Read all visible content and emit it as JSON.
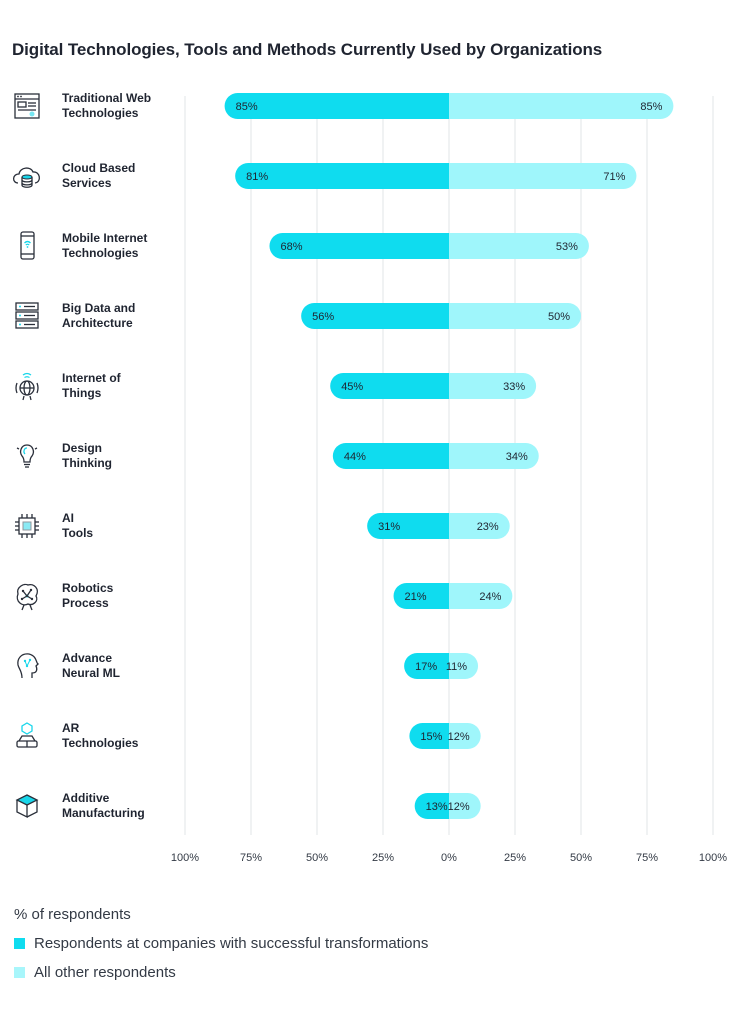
{
  "title": "Digital Technologies, Tools and Methods Currently Used by Organizations",
  "colors": {
    "series1": "#0fdcef",
    "series2": "#9ff6fb",
    "grid": "#e2e4e7",
    "text": "#1f2430"
  },
  "icons": [
    "browser-window-icon",
    "cloud-database-icon",
    "smartphone-wifi-icon",
    "server-stack-icon",
    "globe-signal-icon",
    "lightbulb-icon",
    "ai-chip-icon",
    "robot-brain-icon",
    "neural-head-icon",
    "ar-headset-icon",
    "3d-cube-icon"
  ],
  "legend": {
    "title": "% of respondents",
    "items": [
      "Respondents at companies with successful transformations",
      "All other respondents"
    ]
  },
  "chart_data": {
    "type": "bar",
    "orientation": "horizontal-diverging",
    "categories": [
      [
        "Traditional Web",
        "Technologies"
      ],
      [
        "Cloud Based",
        "Services"
      ],
      [
        "Mobile Internet",
        "Technologies"
      ],
      [
        "Big Data and",
        "Architecture"
      ],
      [
        "Internet of",
        "Things"
      ],
      [
        "Design",
        "Thinking"
      ],
      [
        "AI",
        "Tools"
      ],
      [
        "Robotics",
        "Process"
      ],
      [
        "Advance",
        "Neural ML"
      ],
      [
        "AR",
        "Technologies"
      ],
      [
        "Additive",
        "Manufacturing"
      ]
    ],
    "series": [
      {
        "name": "Respondents at companies with successful transformations",
        "side": "left",
        "values": [
          85,
          81,
          68,
          56,
          45,
          44,
          31,
          21,
          17,
          15,
          13
        ]
      },
      {
        "name": "All other respondents",
        "side": "right",
        "values": [
          85,
          71,
          53,
          50,
          33,
          34,
          23,
          24,
          11,
          12,
          12
        ]
      }
    ],
    "xticks": [
      "100%",
      "75%",
      "50%",
      "25%",
      "0%",
      "25%",
      "50%",
      "75%",
      "100%"
    ],
    "xlim": [
      -100,
      100
    ],
    "grid": true,
    "legend_position": "bottom-left"
  }
}
